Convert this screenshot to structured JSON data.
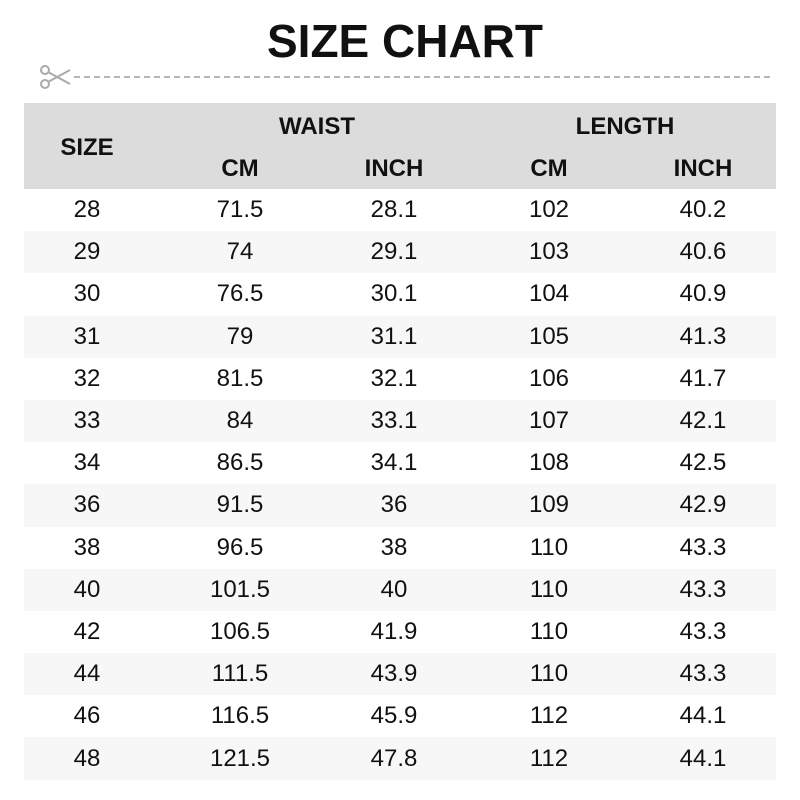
{
  "title": "SIZE CHART",
  "icons": {
    "cut": "scissors-icon"
  },
  "colors": {
    "header_bg": "#dcdcdc",
    "stripe_bg": "#f7f7f7",
    "dash": "#b5b5b5"
  },
  "header": {
    "size": "SIZE",
    "waist": "WAIST",
    "length": "LENGTH",
    "waist_cm": "CM",
    "waist_inch": "INCH",
    "length_cm": "CM",
    "length_inch": "INCH"
  },
  "rows": [
    [
      "28",
      "71.5",
      "28.1",
      "102",
      "40.2"
    ],
    [
      "29",
      "74",
      "29.1",
      "103",
      "40.6"
    ],
    [
      "30",
      "76.5",
      "30.1",
      "104",
      "40.9"
    ],
    [
      "31",
      "79",
      "31.1",
      "105",
      "41.3"
    ],
    [
      "32",
      "81.5",
      "32.1",
      "106",
      "41.7"
    ],
    [
      "33",
      "84",
      "33.1",
      "107",
      "42.1"
    ],
    [
      "34",
      "86.5",
      "34.1",
      "108",
      "42.5"
    ],
    [
      "36",
      "91.5",
      "36",
      "109",
      "42.9"
    ],
    [
      "38",
      "96.5",
      "38",
      "110",
      "43.3"
    ],
    [
      "40",
      "101.5",
      "40",
      "110",
      "43.3"
    ],
    [
      "42",
      "106.5",
      "41.9",
      "110",
      "43.3"
    ],
    [
      "44",
      "111.5",
      "43.9",
      "110",
      "43.3"
    ],
    [
      "46",
      "116.5",
      "45.9",
      "112",
      "44.1"
    ],
    [
      "48",
      "121.5",
      "47.8",
      "112",
      "44.1"
    ]
  ]
}
